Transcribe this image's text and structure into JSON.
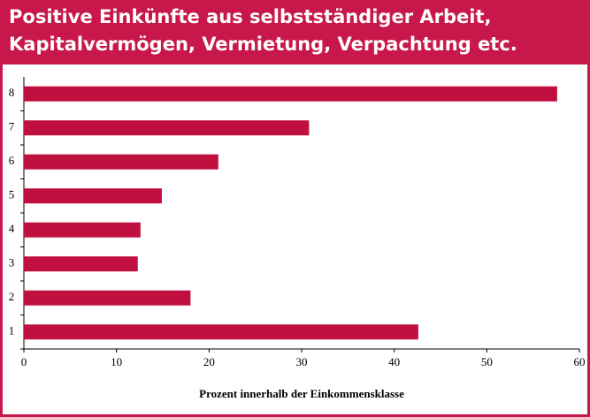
{
  "chart_data": {
    "type": "bar",
    "orientation": "horizontal",
    "title": "Positive Einkünfte aus selbstständiger Arbeit,",
    "subtitle": "Kapitalvermögen, Vermietung, Verpachtung etc.",
    "x_label": "Prozent innerhalb der Einkommensklasse",
    "categories": [
      "1",
      "2",
      "3",
      "4",
      "5",
      "6",
      "7",
      "8"
    ],
    "values": [
      42.6,
      18.0,
      12.3,
      12.6,
      14.9,
      21.0,
      30.8,
      57.6
    ],
    "color": "#c0103f",
    "xlim": [
      0,
      60
    ],
    "xticks": [
      0,
      10,
      20,
      30,
      40,
      50,
      60
    ],
    "grid": false
  }
}
